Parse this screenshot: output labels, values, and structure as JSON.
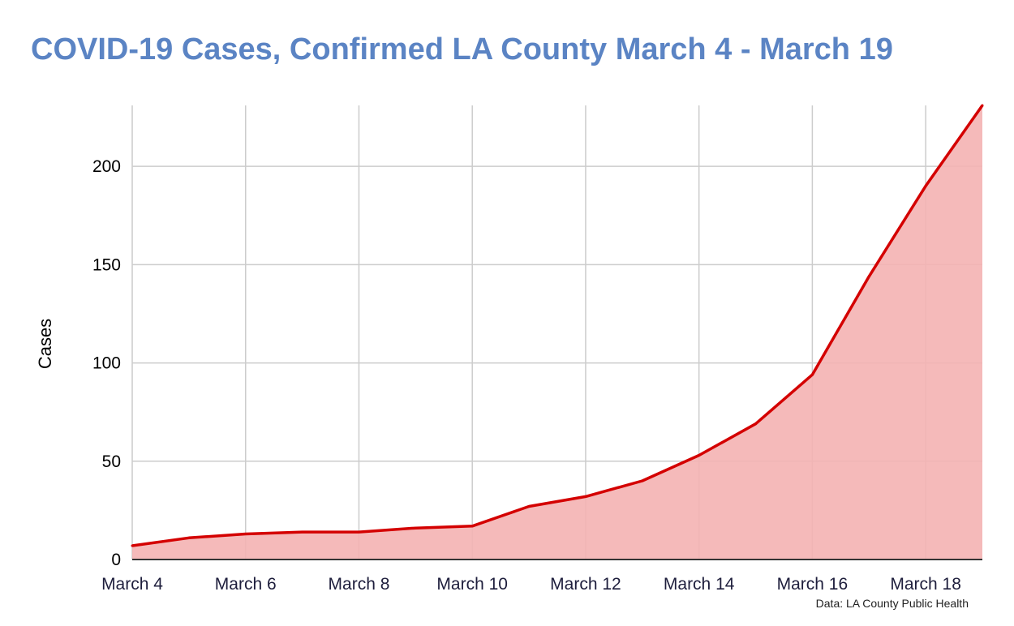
{
  "chart_data": {
    "type": "area",
    "title": "COVID-19 Cases, Confirmed LA County March 4 - March 19",
    "xlabel": "",
    "ylabel": "Cases",
    "source": "Data: LA County Public Health",
    "x": [
      "March 4",
      "March 5",
      "March 6",
      "March 7",
      "March 8",
      "March 9",
      "March 10",
      "March 11",
      "March 12",
      "March 13",
      "March 14",
      "March 15",
      "March 16",
      "March 17",
      "March 18",
      "March 19"
    ],
    "x_tick_labels": [
      "March 4",
      "March 6",
      "March 8",
      "March 10",
      "March 12",
      "March 14",
      "March 16",
      "March 18"
    ],
    "series": [
      {
        "values": [
          7,
          11,
          13,
          14,
          14,
          16,
          17,
          27,
          32,
          40,
          53,
          69,
          94,
          144,
          190,
          231
        ]
      }
    ],
    "ylim": [
      0,
      231
    ],
    "y_ticks": [
      0,
      50,
      100,
      150,
      200
    ],
    "grid": true,
    "colors": {
      "line": "#d40000",
      "fill": "#f4b3b3",
      "title": "#5b84c4"
    }
  }
}
